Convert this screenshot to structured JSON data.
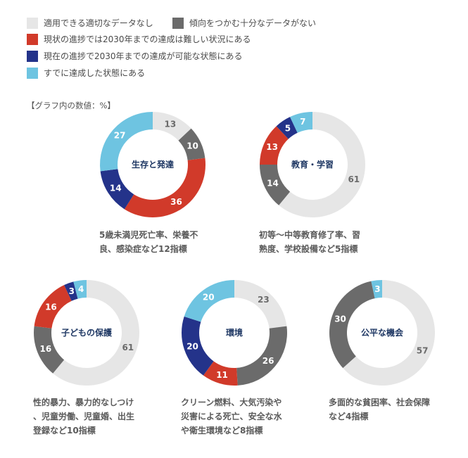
{
  "legend": {
    "items": [
      {
        "label": "適用できる適切なデータなし",
        "color": "#e6e6e6"
      },
      {
        "label": "傾向をつかむ十分なデータがない",
        "color": "#6b6b6b"
      },
      {
        "label": "現状の進捗では2030年までの達成は難しい状況にある",
        "color": "#d13a2a"
      },
      {
        "label": "現在の進捗で2030年までの達成が可能な状態にある",
        "color": "#24338a"
      },
      {
        "label": "すでに達成した状態にある",
        "color": "#6ec4e1"
      }
    ]
  },
  "unit_note": "【グラフ内の数値：%】",
  "chart_data": [
    {
      "type": "pie",
      "title": "生存と発達",
      "categories": [
        "適用できる適切なデータなし",
        "傾向をつかむ十分なデータがない",
        "現状の進捗では2030年までの達成は難しい状況にある",
        "現在の進捗で2030年までの達成が可能な状態にある",
        "すでに達成した状態にある"
      ],
      "values": [
        13,
        10,
        36,
        14,
        27
      ],
      "caption_lines": [
        "5歳未満児死亡率、栄養不",
        "良、感染症など12指標"
      ]
    },
    {
      "type": "pie",
      "title": "教育・学習",
      "categories": [
        "適用できる適切なデータなし",
        "傾向をつかむ十分なデータがない",
        "現状の進捗では2030年までの達成は難しい状況にある",
        "現在の進捗で2030年までの達成が可能な状態にある",
        "すでに達成した状態にある"
      ],
      "values": [
        61,
        14,
        13,
        5,
        7
      ],
      "caption_lines": [
        "初等～中等教育修了率、習",
        "熟度、学校設備など5指標"
      ]
    },
    {
      "type": "pie",
      "title": "子どもの保護",
      "categories": [
        "適用できる適切なデータなし",
        "傾向をつかむ十分なデータがない",
        "現状の進捗では2030年までの達成は難しい状況にある",
        "現在の進捗で2030年までの達成が可能な状態にある",
        "すでに達成した状態にある"
      ],
      "values": [
        61,
        16,
        16,
        3,
        4
      ],
      "caption_lines": [
        "性的暴力、暴力的なしつけ",
        "、児童労働、児童婚、出生",
        "登録など10指標"
      ]
    },
    {
      "type": "pie",
      "title": "環境",
      "categories": [
        "適用できる適切なデータなし",
        "傾向をつかむ十分なデータがない",
        "現状の進捗では2030年までの達成は難しい状況にある",
        "現在の進捗で2030年までの達成が可能な状態にある",
        "すでに達成した状態にある"
      ],
      "values": [
        23,
        26,
        11,
        20,
        20
      ],
      "caption_lines": [
        "クリーン燃料、大気汚染や",
        "災害による死亡、安全な水",
        "や衛生環境など8指標"
      ]
    },
    {
      "type": "pie",
      "title": "公平な機会",
      "categories": [
        "適用できる適切なデータなし",
        "傾向をつかむ十分なデータがない",
        "現状の進捗では2030年までの達成は難しい状況にある",
        "現在の進捗で2030年までの達成が可能な状態にある",
        "すでに達成した状態にある"
      ],
      "values": [
        57,
        30,
        0,
        0,
        3
      ],
      "caption_lines": [
        "多面的な貧困率、社会保障",
        "など4指標"
      ]
    }
  ],
  "style": {
    "colors": [
      "#e6e6e6",
      "#6b6b6b",
      "#d13a2a",
      "#24338a",
      "#6ec4e1"
    ],
    "label_colors": [
      "#6b6b6b",
      "#ffffff",
      "#ffffff",
      "#ffffff",
      "#ffffff"
    ],
    "title_color": "#1f3864"
  }
}
